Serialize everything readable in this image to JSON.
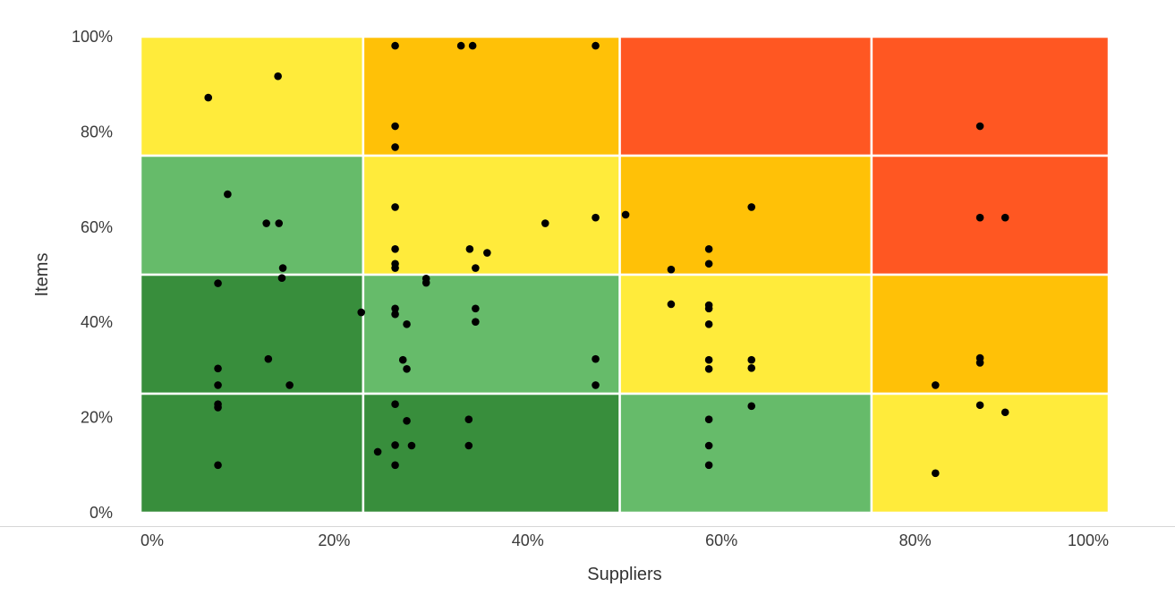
{
  "chart_data": {
    "type": "scatter",
    "title": "",
    "xlabel": "Suppliers",
    "ylabel": "Items",
    "xlim": [
      0,
      100
    ],
    "ylim": [
      0,
      100
    ],
    "x_ticks": [
      "0%",
      "20%",
      "40%",
      "60%",
      "80%",
      "100%"
    ],
    "y_ticks": [
      "0%",
      "20%",
      "40%",
      "60%",
      "80%",
      "100%"
    ],
    "grid": false,
    "background_zones": {
      "x_edges": [
        0,
        23,
        49.5,
        75.5,
        100
      ],
      "y_edges": [
        0,
        25,
        50,
        75,
        100
      ],
      "colors_by_row_from_top": [
        [
          "#FFEB3B",
          "#FFC107",
          "#FF5722",
          "#FF5722"
        ],
        [
          "#66BB6A",
          "#FFEB3B",
          "#FFC107",
          "#FF5722"
        ],
        [
          "#388E3C",
          "#66BB6A",
          "#FFEB3B",
          "#FFC107"
        ],
        [
          "#388E3C",
          "#388E3C",
          "#66BB6A",
          "#FFEB3B"
        ]
      ]
    },
    "series": [
      {
        "points": [
          [
            7,
            87.2
          ],
          [
            14.2,
            91.7
          ],
          [
            9,
            66.9
          ],
          [
            13,
            60.8
          ],
          [
            14.3,
            60.8
          ],
          [
            8,
            48.2
          ],
          [
            14.7,
            51.4
          ],
          [
            14.6,
            49.3
          ],
          [
            8,
            30.3
          ],
          [
            8,
            26.8
          ],
          [
            8,
            22.8
          ],
          [
            8,
            22.1
          ],
          [
            13.2,
            32.3
          ],
          [
            15.4,
            26.8
          ],
          [
            8,
            10
          ],
          [
            22.8,
            42.1
          ],
          [
            26.3,
            98.1
          ],
          [
            26.3,
            81.2
          ],
          [
            26.3,
            76.8
          ],
          [
            26.3,
            64.2
          ],
          [
            26.3,
            55.4
          ],
          [
            26.3,
            52.3
          ],
          [
            26.3,
            51.4
          ],
          [
            26.3,
            42.9
          ],
          [
            26.3,
            41.7
          ],
          [
            26.3,
            22.8
          ],
          [
            26.3,
            14.2
          ],
          [
            26.3,
            10
          ],
          [
            27.1,
            32.1
          ],
          [
            27.5,
            39.6
          ],
          [
            27.5,
            30.2
          ],
          [
            27.5,
            19.3
          ],
          [
            28,
            14.1
          ],
          [
            24.5,
            12.8
          ],
          [
            29.5,
            49.2
          ],
          [
            29.5,
            48.3
          ],
          [
            33.1,
            98.1
          ],
          [
            34.3,
            98.1
          ],
          [
            34,
            55.4
          ],
          [
            35.8,
            54.6
          ],
          [
            34.6,
            51.4
          ],
          [
            34.6,
            42.9
          ],
          [
            34.6,
            40.1
          ],
          [
            33.9,
            19.6
          ],
          [
            33.9,
            14.1
          ],
          [
            41.8,
            60.8
          ],
          [
            47,
            98.1
          ],
          [
            47,
            62
          ],
          [
            47,
            32.3
          ],
          [
            47,
            26.8
          ],
          [
            50.1,
            62.6
          ],
          [
            54.8,
            51.1
          ],
          [
            54.8,
            43.8
          ],
          [
            58.7,
            55.4
          ],
          [
            58.7,
            52.3
          ],
          [
            58.7,
            43.6
          ],
          [
            58.7,
            42.9
          ],
          [
            58.7,
            39.6
          ],
          [
            58.7,
            32.1
          ],
          [
            58.7,
            30.2
          ],
          [
            58.7,
            19.6
          ],
          [
            58.7,
            14.1
          ],
          [
            58.7,
            10
          ],
          [
            63.1,
            64.2
          ],
          [
            63.1,
            32.1
          ],
          [
            63.1,
            30.4
          ],
          [
            63.1,
            22.4
          ],
          [
            82.1,
            26.8
          ],
          [
            82.1,
            8.3
          ],
          [
            86.7,
            81.2
          ],
          [
            86.7,
            62
          ],
          [
            89.3,
            62
          ],
          [
            86.7,
            32.5
          ],
          [
            86.7,
            31.5
          ],
          [
            86.7,
            22.6
          ],
          [
            89.3,
            21.1
          ]
        ]
      }
    ]
  }
}
